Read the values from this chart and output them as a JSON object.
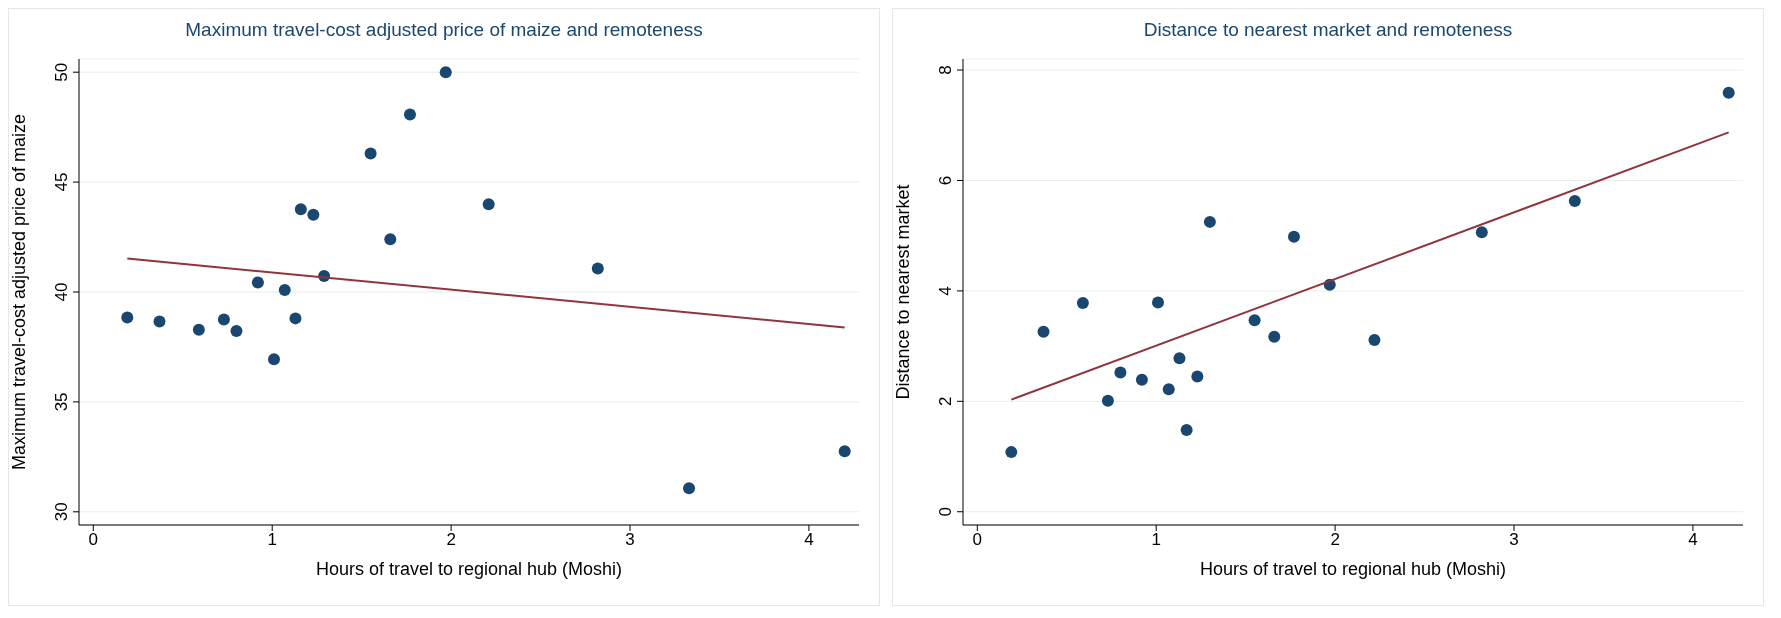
{
  "chart_data": [
    {
      "type": "scatter",
      "title": "Maximum travel-cost adjusted price of maize and remoteness",
      "xlabel": "Hours of travel to regional hub (Moshi)",
      "ylabel": "Maximum travel-cost adjusted price of maize",
      "xlim": [
        -0.08,
        4.28
      ],
      "xticks": [
        0,
        1,
        2,
        3,
        4
      ],
      "ylim": [
        29.4,
        50.6
      ],
      "yticks": [
        30,
        35,
        40,
        45,
        50
      ],
      "grid": "y",
      "legend": false,
      "series": [
        {
          "type": "scatter",
          "color": "#1a476f",
          "marker": "circle",
          "x": [
            0.19,
            0.37,
            0.59,
            0.73,
            0.8,
            0.92,
            1.01,
            1.07,
            1.13,
            1.16,
            1.23,
            1.29,
            1.55,
            1.66,
            1.77,
            1.97,
            2.21,
            2.82,
            3.33,
            4.2
          ],
          "values": [
            38.84,
            38.66,
            38.28,
            38.75,
            38.23,
            40.43,
            36.94,
            40.09,
            38.8,
            43.76,
            43.51,
            40.73,
            46.3,
            42.4,
            48.07,
            50.0,
            43.99,
            41.07,
            31.07,
            32.75
          ]
        },
        {
          "type": "line",
          "color": "#90353b",
          "marker": "none",
          "x": [
            0.19,
            4.2
          ],
          "values": [
            41.52,
            38.39
          ]
        }
      ]
    },
    {
      "type": "scatter",
      "title": "Distance to nearest market and remoteness",
      "xlabel": "Hours of travel to regional hub (Moshi)",
      "ylabel": "Distance to nearest market",
      "xlim": [
        -0.08,
        4.28
      ],
      "xticks": [
        0,
        1,
        2,
        3,
        4
      ],
      "ylim": [
        -0.24,
        8.2
      ],
      "yticks": [
        0,
        2,
        4,
        6,
        8
      ],
      "grid": "y",
      "legend": false,
      "series": [
        {
          "type": "scatter",
          "color": "#1a476f",
          "marker": "circle",
          "x": [
            0.19,
            0.37,
            0.59,
            0.73,
            0.8,
            0.92,
            1.01,
            1.07,
            1.13,
            1.17,
            1.23,
            1.3,
            1.55,
            1.66,
            1.77,
            1.97,
            2.22,
            2.82,
            3.34,
            4.2
          ],
          "values": [
            1.08,
            3.26,
            3.78,
            2.01,
            2.52,
            2.39,
            3.79,
            2.22,
            2.78,
            1.48,
            2.45,
            5.25,
            3.47,
            3.17,
            4.98,
            4.11,
            3.11,
            5.06,
            5.63,
            7.59
          ]
        },
        {
          "type": "line",
          "color": "#90353b",
          "marker": "none",
          "x": [
            0.19,
            4.2
          ],
          "values": [
            2.03,
            6.87
          ]
        }
      ]
    }
  ]
}
